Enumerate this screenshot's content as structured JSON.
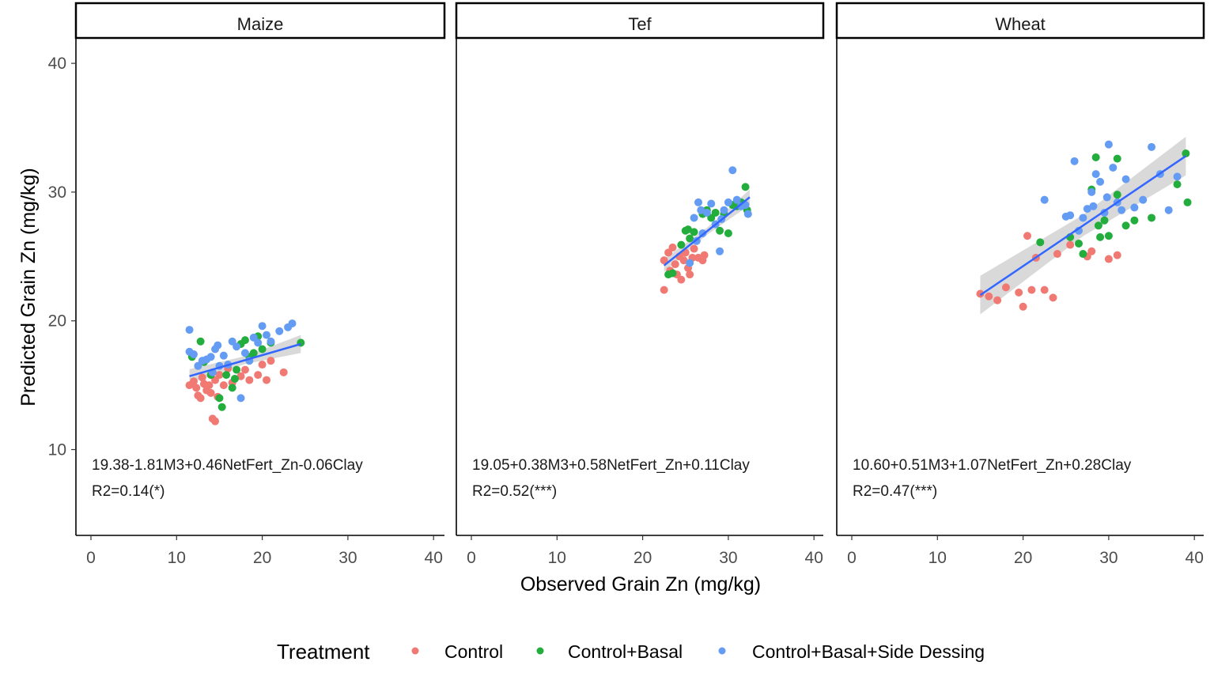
{
  "chart_data": {
    "type": "scatter",
    "xlabel": "Observed Grain Zn (mg/kg)",
    "ylabel": "Predicted Grain Zn (mg/kg)",
    "xlim": [
      -2,
      41
    ],
    "ylim": [
      4,
      42
    ],
    "x_ticks": [
      "0",
      "10",
      "20",
      "30",
      "40"
    ],
    "y_ticks": [
      "10",
      "20",
      "30",
      "40"
    ],
    "legend": {
      "title": "Treatment",
      "position": "bottom",
      "entries": [
        "Control",
        "Control+Basal",
        "Control+Basal+Side Dessing"
      ]
    },
    "colors": {
      "Control": "#f07a73",
      "Control+Basal": "#22ad3c",
      "Control+Basal+Side Dessing": "#649cf4",
      "fit": "#3366ff",
      "band": "#cccccc"
    },
    "panels": [
      {
        "title": "Maize",
        "equation": "19.38-1.81M3+0.46NetFert_Zn-0.06Clay",
        "r2": "R2=0.14(*)",
        "fit": {
          "x": [
            11.5,
            24.5
          ],
          "y": [
            15.7,
            18.2
          ],
          "band_halfwidth_start": 0.55,
          "band_halfwidth_end": 0.7
        },
        "series": [
          {
            "name": "Control",
            "points": [
              [
                11.5,
                15.0
              ],
              [
                12.0,
                15.3
              ],
              [
                12.3,
                14.8
              ],
              [
                12.5,
                14.2
              ],
              [
                12.8,
                14.0
              ],
              [
                13.0,
                15.6
              ],
              [
                13.2,
                15.1
              ],
              [
                13.5,
                14.6
              ],
              [
                13.8,
                15.0
              ],
              [
                14.0,
                14.4
              ],
              [
                14.2,
                12.4
              ],
              [
                14.5,
                12.2
              ],
              [
                14.5,
                15.4
              ],
              [
                14.8,
                14.1
              ],
              [
                15.0,
                15.8
              ],
              [
                15.5,
                15.0
              ],
              [
                16.0,
                16.3
              ],
              [
                16.5,
                15.2
              ],
              [
                17.5,
                15.7
              ],
              [
                18.0,
                16.2
              ],
              [
                18.5,
                15.4
              ],
              [
                19.5,
                15.8
              ],
              [
                20.0,
                16.6
              ],
              [
                20.5,
                15.4
              ],
              [
                21.0,
                16.9
              ],
              [
                22.5,
                16.0
              ]
            ]
          },
          {
            "name": "Control+Basal",
            "points": [
              [
                11.8,
                17.2
              ],
              [
                12.8,
                18.4
              ],
              [
                13.2,
                16.8
              ],
              [
                14.0,
                15.8
              ],
              [
                15.0,
                14.0
              ],
              [
                15.3,
                13.3
              ],
              [
                15.8,
                15.8
              ],
              [
                16.5,
                14.8
              ],
              [
                16.8,
                15.5
              ],
              [
                17.0,
                16.2
              ],
              [
                17.5,
                18.2
              ],
              [
                18.0,
                18.5
              ],
              [
                18.5,
                17.2
              ],
              [
                19.0,
                17.5
              ],
              [
                19.5,
                18.8
              ],
              [
                20.0,
                17.8
              ],
              [
                21.0,
                18.3
              ],
              [
                24.5,
                18.3
              ]
            ]
          },
          {
            "name": "Control+Basal+Side Dessing",
            "points": [
              [
                11.5,
                19.3
              ],
              [
                11.5,
                17.6
              ],
              [
                12.0,
                17.4
              ],
              [
                12.5,
                16.5
              ],
              [
                13.0,
                16.9
              ],
              [
                13.5,
                17.0
              ],
              [
                14.0,
                17.2
              ],
              [
                14.5,
                17.8
              ],
              [
                14.8,
                18.1
              ],
              [
                15.0,
                16.5
              ],
              [
                15.5,
                17.3
              ],
              [
                16.0,
                16.6
              ],
              [
                16.5,
                18.4
              ],
              [
                17.0,
                18.0
              ],
              [
                17.5,
                14.0
              ],
              [
                18.0,
                17.5
              ],
              [
                19.0,
                18.7
              ],
              [
                19.5,
                18.3
              ],
              [
                20.0,
                19.6
              ],
              [
                20.5,
                18.9
              ],
              [
                21.0,
                18.4
              ],
              [
                22.0,
                19.2
              ],
              [
                23.0,
                19.5
              ],
              [
                23.5,
                19.8
              ],
              [
                14.2,
                16.0
              ],
              [
                18.5,
                16.9
              ]
            ]
          }
        ]
      },
      {
        "title": "Tef",
        "equation": "19.05+0.38M3+0.58NetFert_Zn+0.11Clay",
        "r2": "R2=0.52(***)",
        "fit": {
          "x": [
            22.5,
            32.5
          ],
          "y": [
            24.3,
            29.6
          ],
          "band_halfwidth_start": 0.5,
          "band_halfwidth_end": 0.6
        },
        "series": [
          {
            "name": "Control",
            "points": [
              [
                22.5,
                24.7
              ],
              [
                22.5,
                22.4
              ],
              [
                23.0,
                25.3
              ],
              [
                23.2,
                23.9
              ],
              [
                23.5,
                25.7
              ],
              [
                23.8,
                24.4
              ],
              [
                24.0,
                23.6
              ],
              [
                24.3,
                25.0
              ],
              [
                24.5,
                23.2
              ],
              [
                24.8,
                24.7
              ],
              [
                25.0,
                25.3
              ],
              [
                25.3,
                24.1
              ],
              [
                25.5,
                23.6
              ],
              [
                25.8,
                24.9
              ],
              [
                26.0,
                25.6
              ],
              [
                26.5,
                24.9
              ],
              [
                27.0,
                24.7
              ],
              [
                27.2,
                25.1
              ]
            ]
          },
          {
            "name": "Control+Basal",
            "points": [
              [
                23.0,
                23.6
              ],
              [
                23.5,
                23.7
              ],
              [
                24.5,
                25.9
              ],
              [
                25.0,
                27.0
              ],
              [
                25.3,
                27.1
              ],
              [
                25.5,
                26.4
              ],
              [
                26.0,
                26.9
              ],
              [
                27.0,
                28.3
              ],
              [
                27.5,
                28.6
              ],
              [
                28.0,
                28.0
              ],
              [
                28.5,
                28.4
              ],
              [
                29.0,
                27.0
              ],
              [
                29.5,
                28.3
              ],
              [
                30.0,
                26.8
              ],
              [
                30.5,
                29.0
              ],
              [
                31.0,
                28.9
              ],
              [
                31.5,
                29.2
              ],
              [
                32.0,
                30.4
              ],
              [
                32.2,
                28.6
              ]
            ]
          },
          {
            "name": "Control+Basal+Side Dessing",
            "points": [
              [
                25.5,
                24.5
              ],
              [
                26.0,
                28.0
              ],
              [
                26.5,
                29.2
              ],
              [
                26.8,
                28.6
              ],
              [
                27.0,
                26.8
              ],
              [
                27.5,
                28.4
              ],
              [
                28.0,
                29.1
              ],
              [
                28.5,
                27.5
              ],
              [
                29.0,
                25.4
              ],
              [
                29.5,
                28.6
              ],
              [
                30.0,
                29.2
              ],
              [
                30.5,
                31.7
              ],
              [
                31.0,
                29.4
              ],
              [
                31.5,
                28.9
              ],
              [
                32.0,
                29.0
              ],
              [
                32.3,
                28.3
              ],
              [
                26.3,
                26.2
              ],
              [
                29.2,
                27.9
              ]
            ]
          }
        ]
      },
      {
        "title": "Wheat",
        "equation": "10.60+0.51M3+1.07NetFert_Zn+0.28Clay",
        "r2": "R2=0.47(***)",
        "fit": {
          "x": [
            15.0,
            39.0
          ],
          "y": [
            22.0,
            32.8
          ],
          "band_halfwidth_start": 1.5,
          "band_halfwidth_end": 1.5
        },
        "series": [
          {
            "name": "Control",
            "points": [
              [
                15.0,
                22.1
              ],
              [
                16.0,
                21.9
              ],
              [
                17.0,
                21.6
              ],
              [
                18.0,
                22.6
              ],
              [
                19.5,
                22.2
              ],
              [
                20.0,
                21.1
              ],
              [
                20.5,
                26.6
              ],
              [
                21.0,
                22.4
              ],
              [
                21.5,
                24.9
              ],
              [
                22.5,
                22.4
              ],
              [
                23.5,
                21.8
              ],
              [
                24.0,
                25.2
              ],
              [
                25.5,
                25.9
              ],
              [
                27.5,
                25.0
              ],
              [
                28.0,
                25.4
              ],
              [
                30.0,
                24.8
              ],
              [
                31.0,
                25.1
              ]
            ]
          },
          {
            "name": "Control+Basal",
            "points": [
              [
                22.0,
                26.1
              ],
              [
                25.5,
                26.5
              ],
              [
                26.5,
                26.0
              ],
              [
                27.0,
                25.2
              ],
              [
                28.0,
                30.2
              ],
              [
                28.5,
                32.7
              ],
              [
                29.0,
                26.5
              ],
              [
                29.5,
                27.8
              ],
              [
                30.0,
                26.6
              ],
              [
                31.0,
                29.8
              ],
              [
                32.0,
                27.4
              ],
              [
                33.0,
                27.8
              ],
              [
                35.0,
                28.0
              ],
              [
                38.0,
                30.6
              ],
              [
                39.0,
                33.0
              ],
              [
                39.2,
                29.2
              ],
              [
                31.0,
                32.6
              ],
              [
                28.8,
                27.4
              ]
            ]
          },
          {
            "name": "Control+Basal+Side Dessing",
            "points": [
              [
                22.5,
                29.4
              ],
              [
                25.0,
                28.1
              ],
              [
                25.5,
                28.2
              ],
              [
                26.0,
                32.4
              ],
              [
                26.5,
                27.0
              ],
              [
                27.0,
                28.0
              ],
              [
                28.0,
                30.0
              ],
              [
                28.5,
                31.4
              ],
              [
                29.0,
                30.8
              ],
              [
                29.5,
                28.4
              ],
              [
                30.0,
                33.7
              ],
              [
                30.5,
                31.9
              ],
              [
                31.0,
                29.2
              ],
              [
                31.5,
                28.6
              ],
              [
                32.0,
                31.0
              ],
              [
                33.0,
                28.8
              ],
              [
                34.0,
                29.4
              ],
              [
                35.0,
                33.5
              ],
              [
                36.0,
                31.4
              ],
              [
                37.0,
                28.6
              ],
              [
                38.0,
                31.2
              ],
              [
                27.5,
                28.7
              ],
              [
                28.2,
                28.9
              ],
              [
                29.8,
                29.6
              ]
            ]
          }
        ]
      }
    ]
  }
}
